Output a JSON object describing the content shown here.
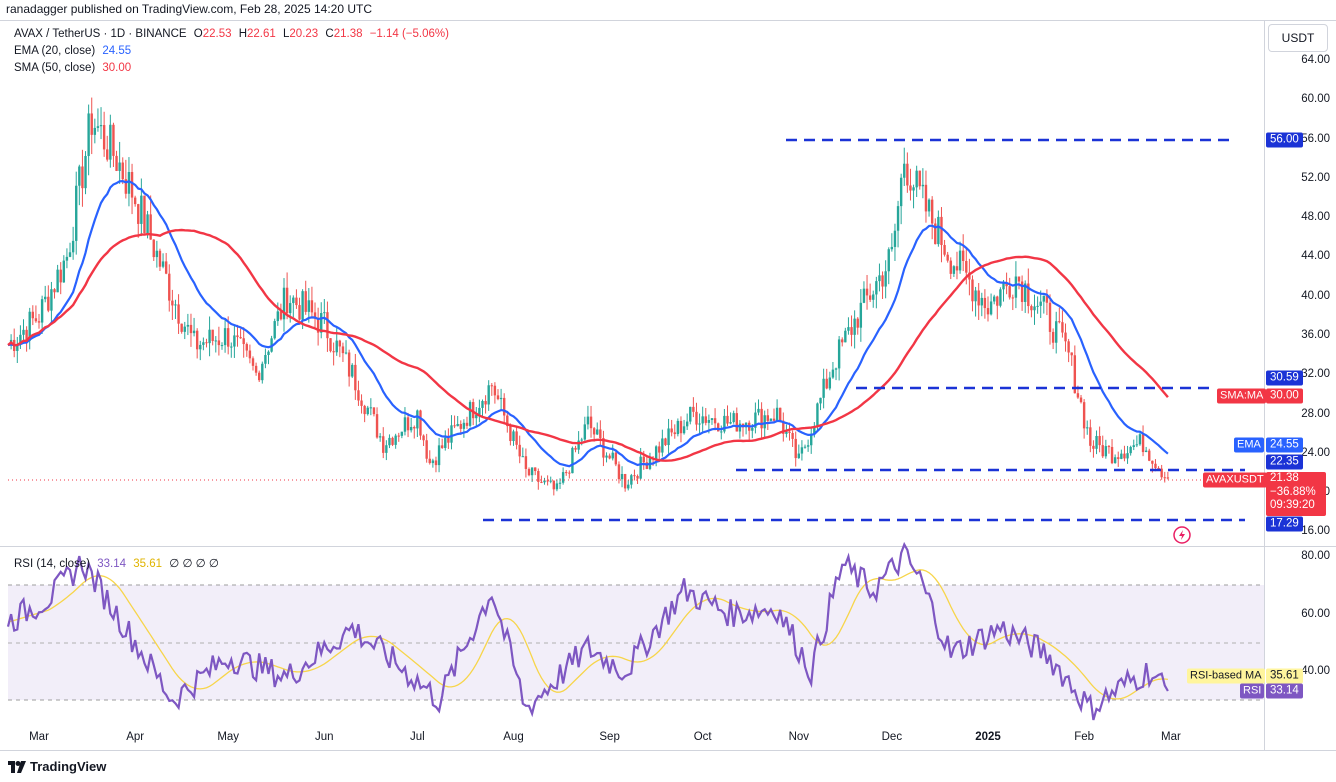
{
  "header": {
    "publisher": "ranadagger published on TradingView.com, Feb 28, 2025 14:20 UTC",
    "symbol": "AVAX / TetherUS · 1D · BINANCE",
    "ohlc": {
      "o_label": "O",
      "o": "22.53",
      "h_label": "H",
      "h": "22.61",
      "l_label": "L",
      "l": "20.23",
      "c_label": "C",
      "c": "21.38",
      "change": "−1.14 (−5.06%)"
    },
    "ema_label": "EMA (20, close)",
    "ema_value": "24.55",
    "sma_label": "SMA (50, close)",
    "sma_value": "30.00",
    "currency": "USDT"
  },
  "price_axis": [
    "64.00",
    "60.00",
    "56.00",
    "52.00",
    "48.00",
    "44.00",
    "40.00",
    "36.00",
    "32.00",
    "28.00",
    "24.00",
    "20.00",
    "16.00"
  ],
  "rsi_axis": [
    "80.00",
    "60.00",
    "40.00"
  ],
  "months": [
    "Mar",
    "Apr",
    "May",
    "Jun",
    "Jul",
    "Aug",
    "Sep",
    "Oct",
    "Nov",
    "Dec",
    "2025",
    "Feb",
    "Mar"
  ],
  "badges": {
    "level_56": "56.00",
    "level_30": "30.59",
    "sma_tag": "SMA:MA",
    "sma_val": "30.00",
    "ema_tag": "EMA",
    "ema_val": "24.55",
    "level_22": "22.35",
    "price_tag": "AVAXUSDT",
    "price": "21.38",
    "pct": "−36.88%",
    "countdown": "09:39:20",
    "level_17": "17.29"
  },
  "rsi": {
    "label": "RSI (14, close)",
    "value": "33.14",
    "ma_value": "35.61",
    "extras": "∅ ∅ ∅ ∅",
    "ma_tag": "RSI-based MA",
    "ma_tag_val": "35.61",
    "rsi_tag": "RSI",
    "rsi_tag_val": "33.14"
  },
  "footer": {
    "brand": "TradingView"
  },
  "colors": {
    "up": "#26a69a",
    "down": "#ef5350",
    "ema": "#2962ff",
    "sma": "#f23645",
    "rsi": "#7e57c2",
    "rsi_ma": "#f7d54a",
    "level": "#1b33d6",
    "price": "#f23645",
    "bg_band": "#ede7f6"
  },
  "chart_data": {
    "type": "candlestick",
    "title": "AVAX / TetherUS · 1D · BINANCE",
    "x_ticks": [
      "Mar",
      "Apr",
      "May",
      "Jun",
      "Jul",
      "Aug",
      "Sep",
      "Oct",
      "Nov",
      "Dec",
      "2025",
      "Feb",
      "Mar"
    ],
    "ylim": [
      16,
      66
    ],
    "close_series": {
      "x": [
        "2024-02-20",
        "2024-03-01",
        "2024-03-10",
        "2024-03-18",
        "2024-03-26",
        "2024-04-01",
        "2024-04-13",
        "2024-04-20",
        "2024-05-01",
        "2024-05-10",
        "2024-05-20",
        "2024-06-01",
        "2024-06-10",
        "2024-06-20",
        "2024-07-01",
        "2024-07-05",
        "2024-07-15",
        "2024-07-25",
        "2024-08-05",
        "2024-08-15",
        "2024-08-25",
        "2024-09-06",
        "2024-09-15",
        "2024-09-28",
        "2024-10-10",
        "2024-10-25",
        "2024-11-01",
        "2024-11-12",
        "2024-11-20",
        "2024-12-01",
        "2024-12-05",
        "2024-12-10",
        "2024-12-20",
        "2025-01-01",
        "2025-01-10",
        "2025-01-20",
        "2025-01-27",
        "2025-02-03",
        "2025-02-10",
        "2025-02-20",
        "2025-02-28"
      ],
      "y": [
        35,
        38,
        44,
        58,
        54,
        50,
        40,
        35,
        36,
        32,
        40,
        37,
        32,
        25,
        28,
        23,
        27,
        31,
        22,
        20,
        27,
        21,
        24,
        28,
        27,
        28,
        23,
        33,
        38,
        44,
        54,
        50,
        44,
        39,
        42,
        38,
        34,
        25,
        24,
        25,
        21.38
      ]
    },
    "ema20": {
      "name": "EMA (20, close)",
      "last": 24.55
    },
    "sma50": {
      "name": "SMA (50, close)",
      "last": 30.0
    },
    "levels": [
      56.0,
      30.59,
      22.35,
      17.29
    ],
    "rsi_series": {
      "name": "RSI (14, close)",
      "ylim": [
        20,
        85
      ],
      "x": [
        "2024-02-20",
        "2024-03-05",
        "2024-03-15",
        "2024-04-01",
        "2024-04-13",
        "2024-05-01",
        "2024-05-20",
        "2024-06-10",
        "2024-06-25",
        "2024-07-08",
        "2024-07-25",
        "2024-08-05",
        "2024-08-25",
        "2024-09-06",
        "2024-09-25",
        "2024-10-10",
        "2024-10-25",
        "2024-11-05",
        "2024-11-15",
        "2024-11-25",
        "2024-12-05",
        "2024-12-10",
        "2024-12-20",
        "2025-01-05",
        "2025-01-20",
        "2025-02-03",
        "2025-02-15",
        "2025-02-22",
        "2025-02-28"
      ],
      "y": [
        57,
        66,
        78,
        50,
        30,
        45,
        38,
        55,
        42,
        30,
        68,
        27,
        48,
        40,
        68,
        60,
        62,
        40,
        77,
        68,
        80,
        72,
        46,
        55,
        46,
        27,
        36,
        40,
        33.14
      ],
      "ma_last": 35.61
    }
  }
}
